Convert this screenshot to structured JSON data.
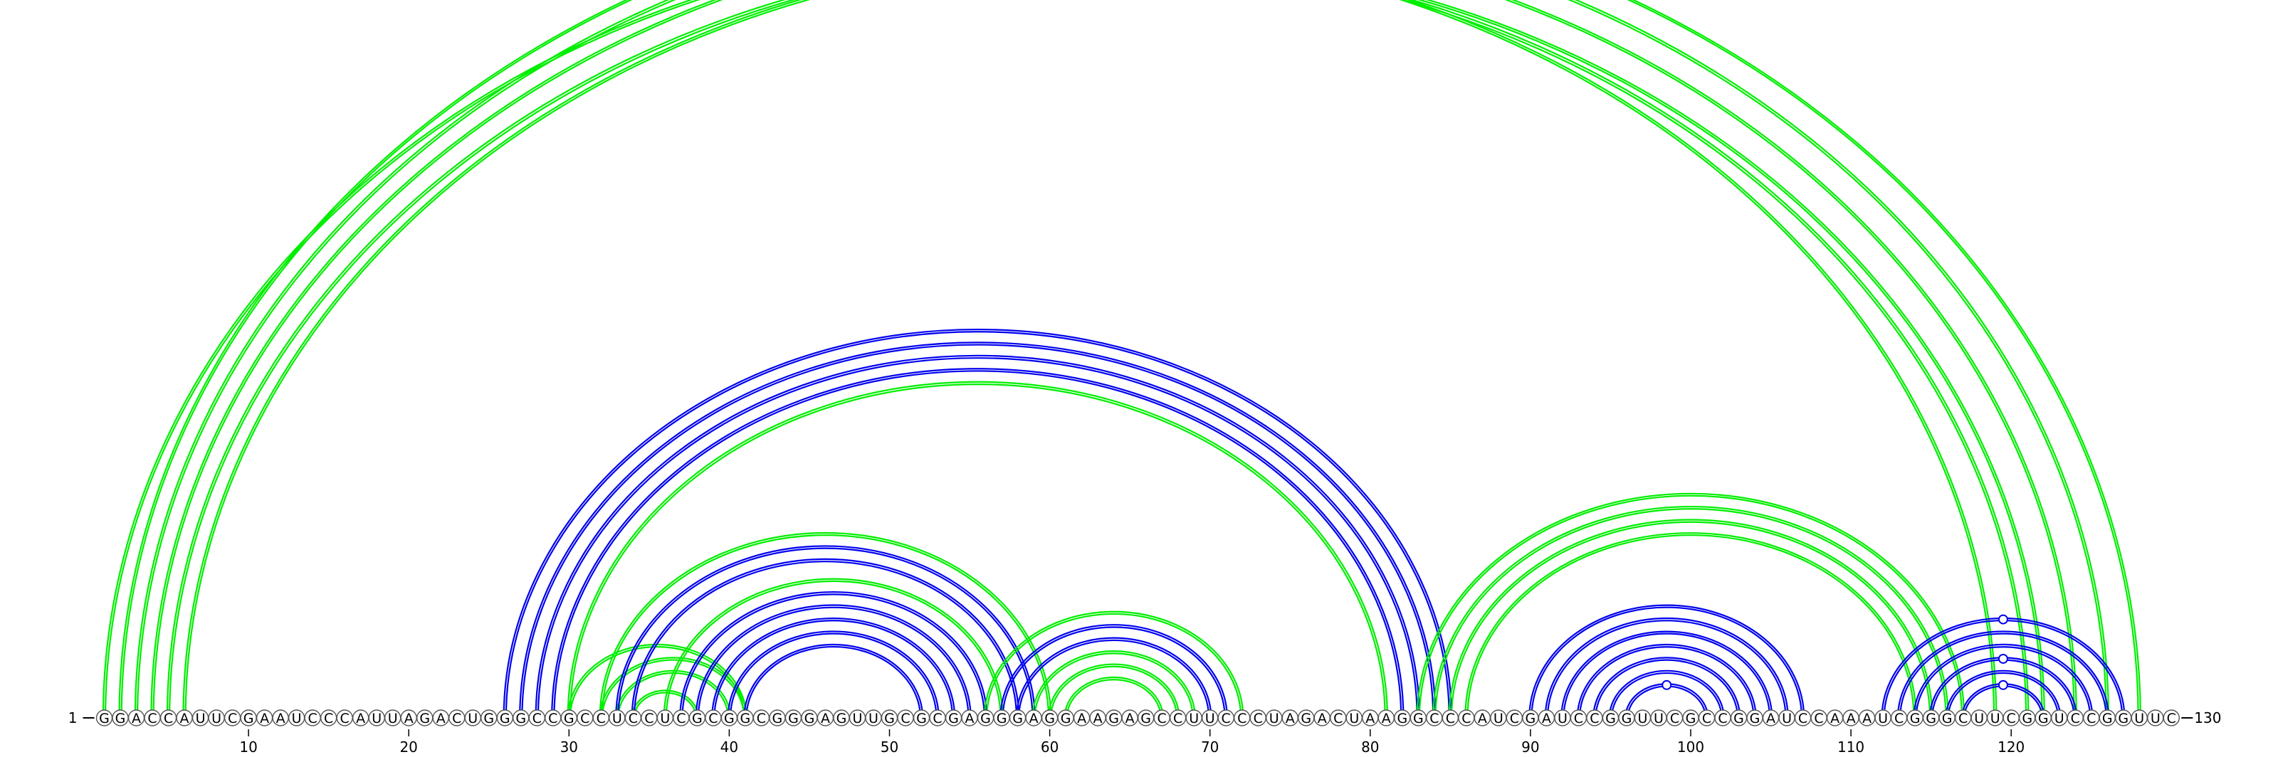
{
  "sequence": "GGACCAUUCGAAUCCCAUUAGACUGGGCCGCCUCCUCGCGGCGGGAGUUGCGCGAGGGAGGAAGAGCCUUCCCUAGACUAAGGCCCAUCGAUCCGGUUCGCCGGAUCCAAAUCGGGCUUCGGUCCGGUUC",
  "start_label": "1",
  "end_label": "130",
  "position_ticks": [
    10,
    20,
    30,
    40,
    50,
    60,
    70,
    80,
    90,
    100,
    110,
    120
  ],
  "colors": {
    "blue": "#0000ee",
    "green": "#00ee00"
  },
  "arcs": [
    {
      "i": 1,
      "j": 119,
      "color": "green",
      "type": "double",
      "marker": true
    },
    {
      "i": 2,
      "j": 128,
      "color": "green",
      "type": "double"
    },
    {
      "i": 3,
      "j": 126,
      "color": "green",
      "type": "double"
    },
    {
      "i": 4,
      "j": 124,
      "color": "green",
      "type": "double"
    },
    {
      "i": 5,
      "j": 121,
      "color": "green",
      "type": "double"
    },
    {
      "i": 6,
      "j": 122,
      "color": "green",
      "type": "double"
    },
    {
      "i": 26,
      "j": 85,
      "color": "blue",
      "type": "double"
    },
    {
      "i": 27,
      "j": 84,
      "color": "blue",
      "type": "double"
    },
    {
      "i": 28,
      "j": 83,
      "color": "blue",
      "type": "double"
    },
    {
      "i": 29,
      "j": 82,
      "color": "blue",
      "type": "double"
    },
    {
      "i": 30,
      "j": 81,
      "color": "green",
      "type": "double"
    },
    {
      "i": 30,
      "j": 41,
      "color": "green",
      "type": "double"
    },
    {
      "i": 32,
      "j": 41,
      "color": "green",
      "type": "double"
    },
    {
      "i": 33,
      "j": 40,
      "color": "green",
      "type": "double"
    },
    {
      "i": 34,
      "j": 38,
      "color": "green",
      "type": "double"
    },
    {
      "i": 32,
      "j": 60,
      "color": "green",
      "type": "double"
    },
    {
      "i": 33,
      "j": 59,
      "color": "blue",
      "type": "double"
    },
    {
      "i": 34,
      "j": 58,
      "color": "blue",
      "type": "double"
    },
    {
      "i": 36,
      "j": 57,
      "color": "green",
      "type": "double"
    },
    {
      "i": 37,
      "j": 56,
      "color": "blue",
      "type": "double"
    },
    {
      "i": 38,
      "j": 55,
      "color": "blue",
      "type": "double"
    },
    {
      "i": 39,
      "j": 54,
      "color": "blue",
      "type": "double"
    },
    {
      "i": 40,
      "j": 53,
      "color": "blue",
      "type": "double"
    },
    {
      "i": 41,
      "j": 52,
      "color": "blue",
      "type": "double"
    },
    {
      "i": 56,
      "j": 72,
      "color": "green",
      "type": "double"
    },
    {
      "i": 57,
      "j": 71,
      "color": "blue",
      "type": "double"
    },
    {
      "i": 58,
      "j": 70,
      "color": "blue",
      "type": "double"
    },
    {
      "i": 59,
      "j": 69,
      "color": "green",
      "type": "double"
    },
    {
      "i": 60,
      "j": 68,
      "color": "green",
      "type": "double"
    },
    {
      "i": 61,
      "j": 67,
      "color": "green",
      "type": "double"
    },
    {
      "i": 83,
      "j": 117,
      "color": "green",
      "type": "double"
    },
    {
      "i": 84,
      "j": 116,
      "color": "green",
      "type": "double"
    },
    {
      "i": 85,
      "j": 115,
      "color": "green",
      "type": "double"
    },
    {
      "i": 86,
      "j": 114,
      "color": "green",
      "type": "double"
    },
    {
      "i": 90,
      "j": 107,
      "color": "blue",
      "type": "double"
    },
    {
      "i": 91,
      "j": 106,
      "color": "blue",
      "type": "double"
    },
    {
      "i": 92,
      "j": 105,
      "color": "blue",
      "type": "double"
    },
    {
      "i": 93,
      "j": 104,
      "color": "blue",
      "type": "double"
    },
    {
      "i": 94,
      "j": 103,
      "color": "blue",
      "type": "double"
    },
    {
      "i": 95,
      "j": 102,
      "color": "blue",
      "type": "double"
    },
    {
      "i": 96,
      "j": 101,
      "color": "blue",
      "type": "double",
      "marker": true
    },
    {
      "i": 112,
      "j": 127,
      "color": "blue",
      "type": "double",
      "marker": true
    },
    {
      "i": 113,
      "j": 126,
      "color": "blue",
      "type": "double"
    },
    {
      "i": 114,
      "j": 125,
      "color": "blue",
      "type": "double"
    },
    {
      "i": 115,
      "j": 124,
      "color": "blue",
      "type": "double",
      "marker": true
    },
    {
      "i": 116,
      "j": 123,
      "color": "blue",
      "type": "double"
    },
    {
      "i": 117,
      "j": 122,
      "color": "blue",
      "type": "double",
      "marker": true
    }
  ]
}
